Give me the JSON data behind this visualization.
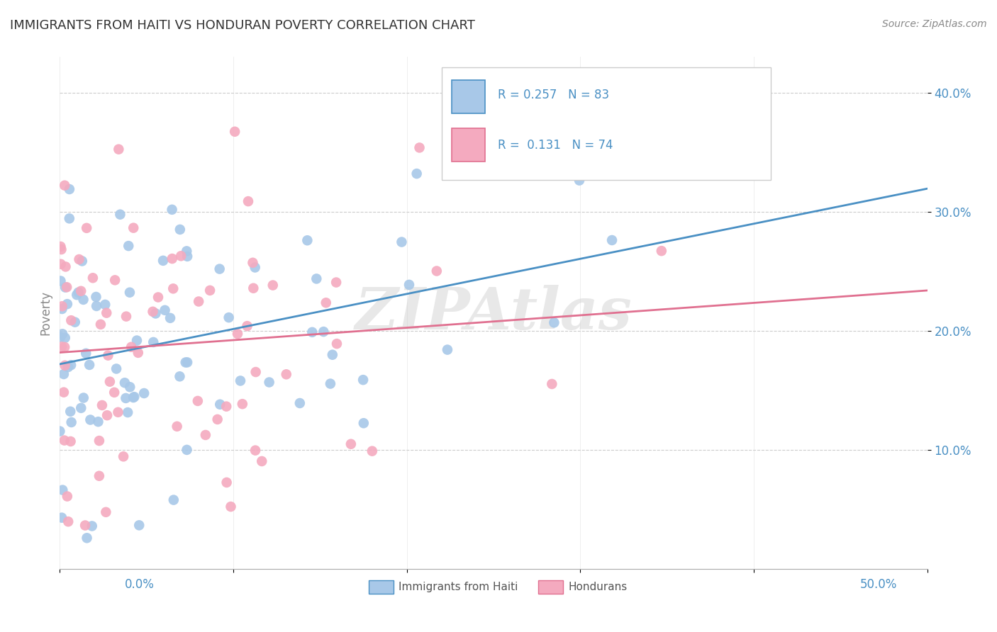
{
  "title": "IMMIGRANTS FROM HAITI VS HONDURAN POVERTY CORRELATION CHART",
  "source": "Source: ZipAtlas.com",
  "ylabel": "Poverty",
  "xlim": [
    0.0,
    0.5
  ],
  "ylim": [
    0.0,
    0.43
  ],
  "yticks": [
    0.1,
    0.2,
    0.3,
    0.4
  ],
  "ytick_labels": [
    "10.0%",
    "20.0%",
    "30.0%",
    "40.0%"
  ],
  "color_blue": "#A8C8E8",
  "color_pink": "#F4AABF",
  "line_blue": "#4A90C4",
  "line_pink": "#E07090",
  "R_blue": 0.257,
  "N_blue": 83,
  "R_pink": 0.131,
  "N_pink": 74,
  "watermark": "ZIPAtlas",
  "legend_label_blue": "Immigrants from Haiti",
  "legend_label_pink": "Hondurans",
  "text_blue": "#4A90C4",
  "text_pink": "#E07090",
  "grid_color": "#CCCCCC",
  "bg_color": "#FFFFFF",
  "title_color": "#333333",
  "source_color": "#888888",
  "ylabel_color": "#888888"
}
